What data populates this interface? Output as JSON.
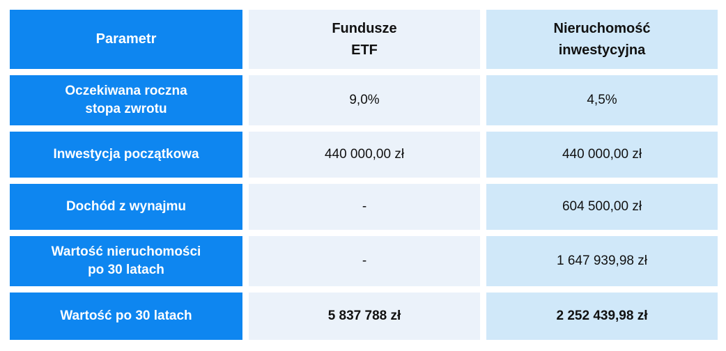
{
  "colors": {
    "primary_blue": "#0e86f0",
    "etf_column_bg": "#ebf2fa",
    "property_column_bg": "#d0e8f9",
    "header_text_on_blue": "#ffffff",
    "data_text": "#111111",
    "gap_color": "#ffffff"
  },
  "chart_data": {
    "type": "table",
    "title": "",
    "columns": [
      "Parametr",
      "Fundusze ETF",
      "Nieruchomość inwestycyjna"
    ],
    "rows": [
      [
        "Oczekiwana roczna stopa zwrotu",
        "9,0%",
        "4,5%"
      ],
      [
        "Inwestycja początkowa",
        "440 000,00 zł",
        "440 000,00 zł"
      ],
      [
        "Dochód z wynajmu",
        "-",
        "604 500,00 zł"
      ],
      [
        "Wartość nieruchomości po 30 latach",
        "-",
        "1 647 939,98 zł"
      ],
      [
        "Wartość po 30 latach",
        "5 837 788 zł",
        "2 252 439,98 zł"
      ]
    ]
  },
  "table": {
    "header": {
      "param": "Parametr",
      "etf": "Fundusze\nETF",
      "property": "Nieruchomość\ninwestycyjna"
    },
    "rows": [
      {
        "label": "Oczekiwana roczna\nstopa zwrotu",
        "etf": "9,0%",
        "property": "4,5%"
      },
      {
        "label": "Inwestycja początkowa",
        "etf": "440 000,00 zł",
        "property": "440 000,00 zł"
      },
      {
        "label": "Dochód z wynajmu",
        "etf": "-",
        "property": "604 500,00 zł"
      },
      {
        "label": "Wartość nieruchomości\npo 30 latach",
        "etf": "-",
        "property": "1 647 939,98 zł"
      },
      {
        "label": "Wartość po 30 latach",
        "etf": "5 837 788 zł",
        "property": "2 252 439,98 zł"
      }
    ]
  }
}
